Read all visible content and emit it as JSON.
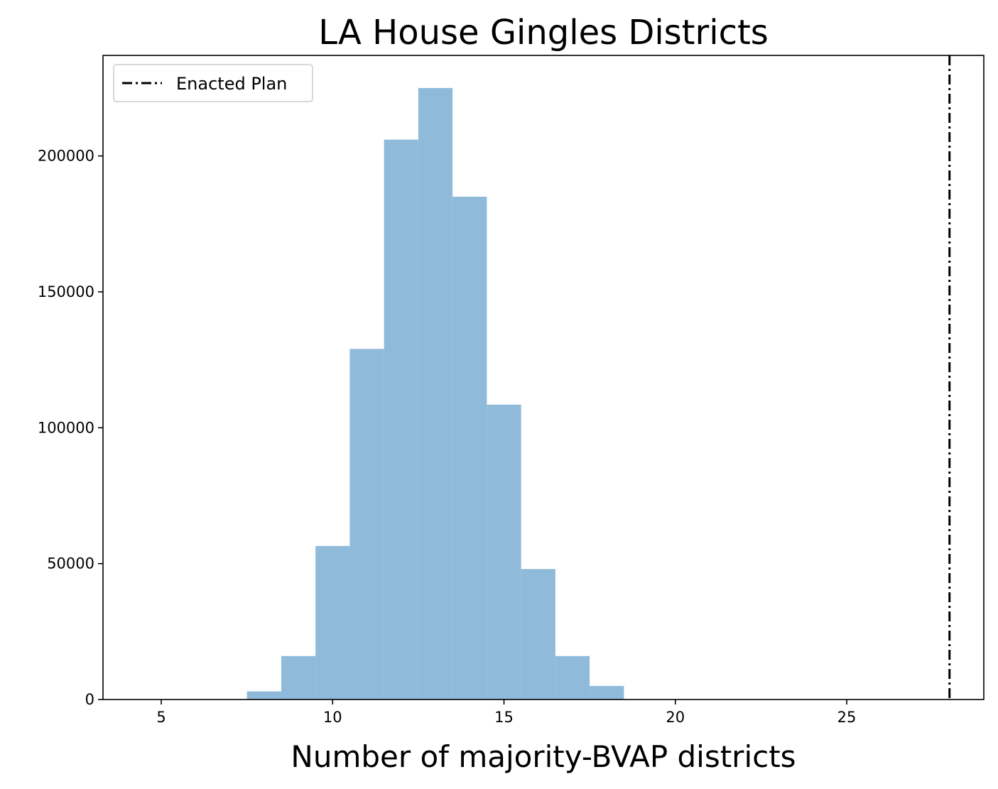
{
  "chart_data": {
    "type": "bar",
    "title": "LA House Gingles Districts",
    "xlabel": "Number of majority-BVAP districts",
    "ylabel": "",
    "xlim": [
      3.3,
      29.0
    ],
    "ylim": [
      0,
      237000
    ],
    "x_ticks": [
      5,
      10,
      15,
      20,
      25
    ],
    "y_ticks": [
      0,
      50000,
      100000,
      150000,
      200000
    ],
    "bar_color": "#8fbad9",
    "bins": [
      {
        "left": 7.5,
        "right": 8.5,
        "value": 3000
      },
      {
        "left": 8.5,
        "right": 9.5,
        "value": 16000
      },
      {
        "left": 9.5,
        "right": 10.5,
        "value": 56500
      },
      {
        "left": 10.5,
        "right": 11.5,
        "value": 129000
      },
      {
        "left": 11.5,
        "right": 12.5,
        "value": 206000
      },
      {
        "left": 12.5,
        "right": 13.5,
        "value": 225000
      },
      {
        "left": 13.5,
        "right": 14.5,
        "value": 185000
      },
      {
        "left": 14.5,
        "right": 15.5,
        "value": 108500
      },
      {
        "left": 15.5,
        "right": 16.5,
        "value": 48000
      },
      {
        "left": 16.5,
        "right": 17.5,
        "value": 16000
      },
      {
        "left": 17.5,
        "right": 18.5,
        "value": 5000
      }
    ],
    "reference_line": {
      "x": 28,
      "label": "Enacted Plan",
      "style": "dash-dot",
      "color": "#000000"
    },
    "legend": {
      "placement": "top-left",
      "entries": [
        "Enacted Plan"
      ]
    },
    "grid": false
  }
}
